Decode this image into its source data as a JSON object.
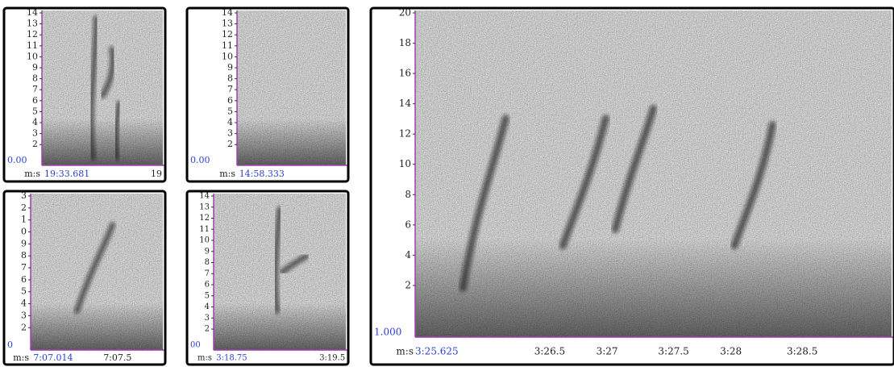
{
  "panels": [
    {
      "y_labels": [
        "14",
        "13",
        "12",
        "11",
        "10",
        "9",
        "8",
        "7",
        "6",
        "5",
        "4",
        "3",
        "2"
      ],
      "origin_label": "0.00",
      "x_prefix": "m:s",
      "x_labels": [
        "19:33.681",
        "19"
      ]
    },
    {
      "y_labels": [
        "14",
        "13",
        "12",
        "11",
        "10",
        "9",
        "8",
        "7",
        "6",
        "5",
        "4",
        "3",
        "2"
      ],
      "origin_label": "0.00",
      "x_prefix": "m:s",
      "x_labels": [
        "14:58.333"
      ]
    },
    {
      "y_labels": [
        "3",
        "2",
        "1",
        "0",
        "9",
        "8",
        "7",
        "6",
        "5",
        "4",
        "3",
        "2"
      ],
      "origin_label": "0",
      "x_prefix": "m:s",
      "x_labels": [
        "7:07.014",
        "7:07.5"
      ]
    },
    {
      "y_labels": [
        "14",
        "13",
        "12",
        "11",
        "10",
        "9",
        "8",
        "7",
        "6",
        "5",
        "4",
        "3",
        "2"
      ],
      "origin_label": "00",
      "x_prefix": "m:s",
      "x_labels": [
        "3:18.75",
        "3:19.5"
      ]
    },
    {
      "y_labels": [
        "20",
        "18",
        "16",
        "14",
        "12",
        "10",
        "8",
        "6",
        "4",
        "2"
      ],
      "origin_label": "1.000",
      "x_prefix": "m:s",
      "x_labels": [
        "3:25.625",
        "3:26.5",
        "3:27",
        "3:27.5",
        "3:28",
        "3:28.5"
      ]
    }
  ]
}
